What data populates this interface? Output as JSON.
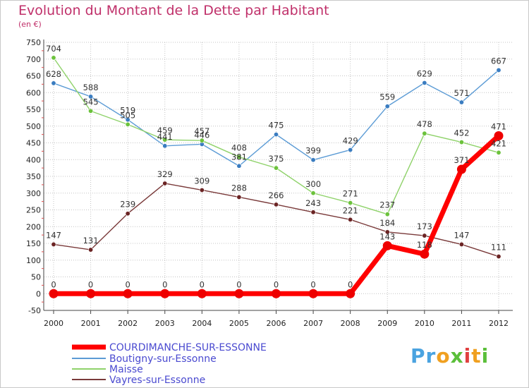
{
  "chart_data": {
    "type": "line",
    "title": "Evolution du Montant de la Dette par Habitant",
    "subtitle": "(en €)",
    "x": [
      "2000",
      "2001",
      "2002",
      "2003",
      "2004",
      "2005",
      "2006",
      "2007",
      "2008",
      "2009",
      "2010",
      "2011",
      "2012"
    ],
    "ylim": [
      -50,
      750
    ],
    "yticks": [
      -50,
      0,
      50,
      100,
      150,
      200,
      250,
      300,
      350,
      400,
      450,
      500,
      550,
      600,
      650,
      700,
      750
    ],
    "grid": true,
    "legend": "bottom-left",
    "series": [
      {
        "name": "Boutigny-sur-Essonne",
        "color": "#5b9bd5",
        "marker": "#3a7cc0",
        "values": [
          628,
          588,
          519,
          441,
          446,
          381,
          475,
          399,
          429,
          559,
          629,
          571,
          667
        ],
        "labels": [
          "628",
          "588",
          "519",
          "441",
          "446",
          "381",
          "475",
          "399",
          "429",
          "559",
          "629",
          "571",
          "667"
        ]
      },
      {
        "name": "Maisse",
        "color": "#8fd26a",
        "marker": "#6cc23c",
        "values": [
          704,
          545,
          505,
          459,
          457,
          408,
          375,
          300,
          271,
          237,
          478,
          452,
          421
        ],
        "labels": [
          "704",
          "545",
          "505",
          "459",
          "457",
          "408",
          "375",
          "300",
          "271",
          "237",
          "478",
          "452",
          "421"
        ]
      },
      {
        "name": "Vayres-sur-Essonne",
        "color": "#7a3a3a",
        "marker": "#6b2424",
        "values": [
          147,
          131,
          239,
          329,
          309,
          288,
          266,
          243,
          221,
          184,
          173,
          147,
          111
        ],
        "labels": [
          "147",
          "131",
          "239",
          "329",
          "309",
          "288",
          "266",
          "243",
          "221",
          "184",
          "173",
          "147",
          "111"
        ]
      },
      {
        "name": "COURDIMANCHE-SUR-ESSONNE",
        "color": "#ff0000",
        "marker": "#ee0000",
        "values": [
          0,
          0,
          0,
          0,
          0,
          0,
          0,
          0,
          0,
          143,
          118,
          371,
          471
        ],
        "labels": [
          "0",
          "0",
          "0",
          "0",
          "0",
          "0",
          "0",
          "0",
          "0",
          "143",
          "118",
          "371",
          "471"
        ]
      }
    ],
    "legend_order": [
      "COURDIMANCHE-SUR-ESSONNE",
      "Boutigny-sur-Essonne",
      "Maisse",
      "Vayres-sur-Essonne"
    ]
  },
  "logo": {
    "letters": [
      "P",
      "r",
      "o",
      "x",
      "i",
      "t",
      "i"
    ],
    "colors": [
      "#4aa3e0",
      "#4aa3e0",
      "#f0a020",
      "#5bbf3a",
      "#e04040",
      "#f0a020",
      "#5bbf3a"
    ]
  }
}
